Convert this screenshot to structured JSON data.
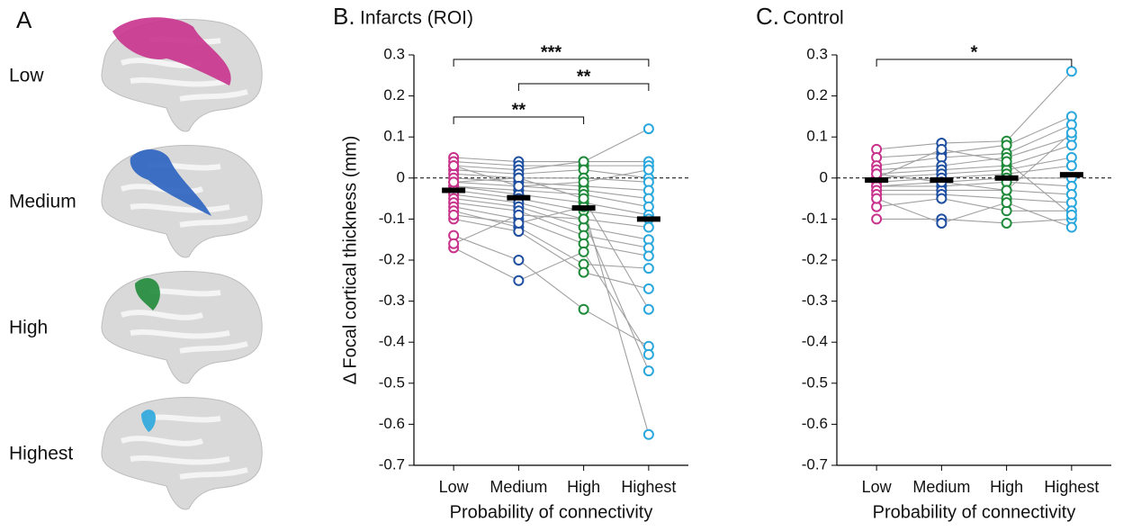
{
  "panel_a": {
    "panel": "A",
    "labels": [
      "Low",
      "Medium",
      "High",
      "Highest"
    ],
    "colors": [
      "#c8328c",
      "#2a62c0",
      "#1f8a3a",
      "#2aa7dd"
    ]
  },
  "chart_data": [
    {
      "type": "paired-dot",
      "panel": "B.",
      "title": "Infarcts (ROI)",
      "ylabel": "Δ Focal cortical thickness (mm)",
      "xlabel": "Probability of connectivity",
      "categories": [
        "Low",
        "Medium",
        "High",
        "Highest"
      ],
      "colors": [
        "#c8328c",
        "#1f4fa0",
        "#1f8a3a",
        "#2aa7dd"
      ],
      "ylim": [
        -0.7,
        0.3
      ],
      "yticks": [
        0.3,
        0.2,
        0.1,
        0,
        -0.1,
        -0.2,
        -0.3,
        -0.4,
        -0.5,
        -0.6,
        -0.7
      ],
      "zero_line": true,
      "subjects": [
        [
          0.05,
          0.04,
          0.04,
          0.04
        ],
        [
          0.04,
          0.03,
          0.03,
          0.03
        ],
        [
          0.03,
          0.02,
          0.04,
          0.12
        ],
        [
          0.02,
          0.01,
          0.02,
          0.0
        ],
        [
          0.01,
          0.0,
          0.0,
          -0.01
        ],
        [
          0.0,
          -0.01,
          -0.02,
          -0.03
        ],
        [
          -0.01,
          -0.02,
          -0.03,
          -0.05
        ],
        [
          -0.02,
          -0.03,
          -0.04,
          -0.07
        ],
        [
          -0.02,
          -0.04,
          -0.06,
          -0.09
        ],
        [
          -0.03,
          -0.05,
          -0.08,
          -0.1
        ],
        [
          -0.04,
          -0.06,
          -0.1,
          -0.12
        ],
        [
          -0.05,
          -0.07,
          -0.12,
          -0.15
        ],
        [
          -0.06,
          -0.08,
          -0.14,
          -0.17
        ],
        [
          -0.07,
          -0.1,
          -0.16,
          -0.19
        ],
        [
          -0.08,
          -0.12,
          -0.21,
          -0.22
        ],
        [
          -0.1,
          -0.13,
          -0.23,
          -0.27
        ],
        [
          -0.14,
          -0.2,
          -0.32,
          -0.41
        ],
        [
          -0.17,
          -0.25,
          -0.18,
          -0.43
        ],
        [
          -0.16,
          -0.09,
          -0.1,
          -0.47
        ],
        [
          -0.09,
          -0.11,
          -0.07,
          -0.625
        ],
        [
          -0.01,
          0.0,
          -0.05,
          -0.32
        ],
        [
          0.03,
          -0.02,
          -0.01,
          0.02
        ]
      ],
      "means": [
        -0.03,
        -0.048,
        -0.073,
        -0.1
      ],
      "significance": [
        {
          "between": [
            "Low",
            "Highest"
          ],
          "label": "***"
        },
        {
          "between": [
            "Medium",
            "Highest"
          ],
          "label": "**"
        },
        {
          "between": [
            "Low",
            "High"
          ],
          "label": "**"
        }
      ]
    },
    {
      "type": "paired-dot",
      "panel": "C.",
      "title": "Control",
      "xlabel": "Probability of connectivity",
      "categories": [
        "Low",
        "Medium",
        "High",
        "Highest"
      ],
      "colors": [
        "#c8328c",
        "#1f4fa0",
        "#1f8a3a",
        "#2aa7dd"
      ],
      "ylim": [
        -0.7,
        0.3
      ],
      "yticks": [
        0.3,
        0.2,
        0.1,
        0,
        -0.1,
        -0.2,
        -0.3,
        -0.4,
        -0.5,
        -0.6,
        -0.7
      ],
      "zero_line": true,
      "subjects": [
        [
          0.07,
          0.085,
          0.09,
          0.26
        ],
        [
          0.05,
          0.06,
          0.08,
          0.15
        ],
        [
          0.03,
          0.05,
          0.06,
          0.13
        ],
        [
          0.02,
          0.03,
          0.05,
          0.1
        ],
        [
          0.01,
          0.02,
          0.03,
          0.08
        ],
        [
          0.0,
          0.01,
          0.02,
          0.05
        ],
        [
          -0.01,
          0.0,
          0.01,
          0.03
        ],
        [
          -0.02,
          -0.01,
          0.0,
          0.0
        ],
        [
          -0.02,
          -0.02,
          -0.01,
          -0.02
        ],
        [
          -0.03,
          -0.03,
          -0.03,
          -0.04
        ],
        [
          -0.04,
          -0.04,
          -0.05,
          -0.06
        ],
        [
          -0.07,
          -0.05,
          -0.08,
          -0.08
        ],
        [
          -0.1,
          -0.1,
          -0.11,
          -0.1
        ],
        [
          -0.05,
          -0.11,
          -0.06,
          -0.12
        ],
        [
          0.0,
          0.07,
          0.04,
          -0.09
        ],
        [
          0.01,
          -0.01,
          -0.03,
          0.11
        ]
      ],
      "means": [
        -0.005,
        -0.005,
        0,
        0.008
      ],
      "significance": [
        {
          "between": [
            "Low",
            "Highest"
          ],
          "label": "*"
        }
      ]
    }
  ]
}
